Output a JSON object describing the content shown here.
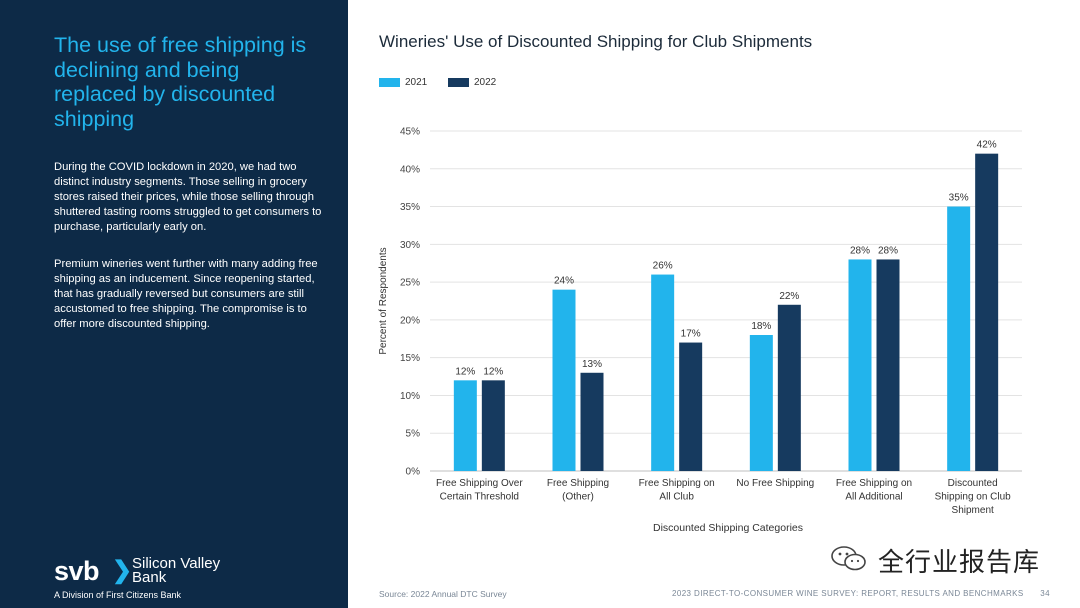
{
  "sidebar": {
    "headline": "The use of free shipping is declining and being replaced by discounted shipping",
    "paragraph1": "During the COVID lockdown in 2020, we had two distinct industry segments. Those selling in grocery stores raised their prices, while those selling through shuttered tasting rooms struggled to get consumers to purchase, particularly early on.",
    "paragraph2": "Premium wineries went further with many adding free shipping as an inducement. Since reopening started, that has gradually reversed but consumers are still accustomed to free shipping. The compromise is to offer more discounted shipping.",
    "logo_mark": "svb",
    "logo_chevron": "❯",
    "logo_name": "Silicon Valley Bank",
    "logo_sub": "A Division of First Citizens Bank"
  },
  "footer": {
    "source": "Source: 2022 Annual DTC Survey",
    "report": "2023 DIRECT-TO-CONSUMER WINE SURVEY: REPORT, RESULTS AND BENCHMARKS",
    "page": "34"
  },
  "watermark": {
    "text": "全行业报告库"
  },
  "colors": {
    "series2021": "#22b4ec",
    "series2022": "#163a5f",
    "sidebar_bg": "#0d2a47",
    "headline": "#22b4ec"
  },
  "chart_data": {
    "type": "bar",
    "title": "Wineries' Use of Discounted Shipping for Club Shipments",
    "xlabel": "Discounted Shipping Categories",
    "ylabel": "Percent of Respondents",
    "ylim": [
      0,
      45
    ],
    "yticks": [
      "0%",
      "5%",
      "10%",
      "15%",
      "20%",
      "25%",
      "30%",
      "35%",
      "40%",
      "45%"
    ],
    "grid": true,
    "legend_position": "top-left",
    "categories": [
      [
        "Free Shipping Over",
        "Certain Threshold"
      ],
      [
        "Free Shipping",
        "(Other)"
      ],
      [
        "Free Shipping on",
        "All Club"
      ],
      [
        "No Free Shipping"
      ],
      [
        "Free Shipping on",
        "All Additional"
      ],
      [
        "Discounted",
        "Shipping on Club",
        "Shipment"
      ]
    ],
    "series": [
      {
        "name": "2021",
        "values": [
          12,
          24,
          26,
          18,
          28,
          35
        ],
        "labels": [
          "12%",
          "24%",
          "26%",
          "18%",
          "28%",
          "35%"
        ]
      },
      {
        "name": "2022",
        "values": [
          12,
          13,
          17,
          22,
          28,
          42
        ],
        "labels": [
          "12%",
          "13%",
          "17%",
          "22%",
          "28%",
          "42%"
        ]
      }
    ]
  }
}
